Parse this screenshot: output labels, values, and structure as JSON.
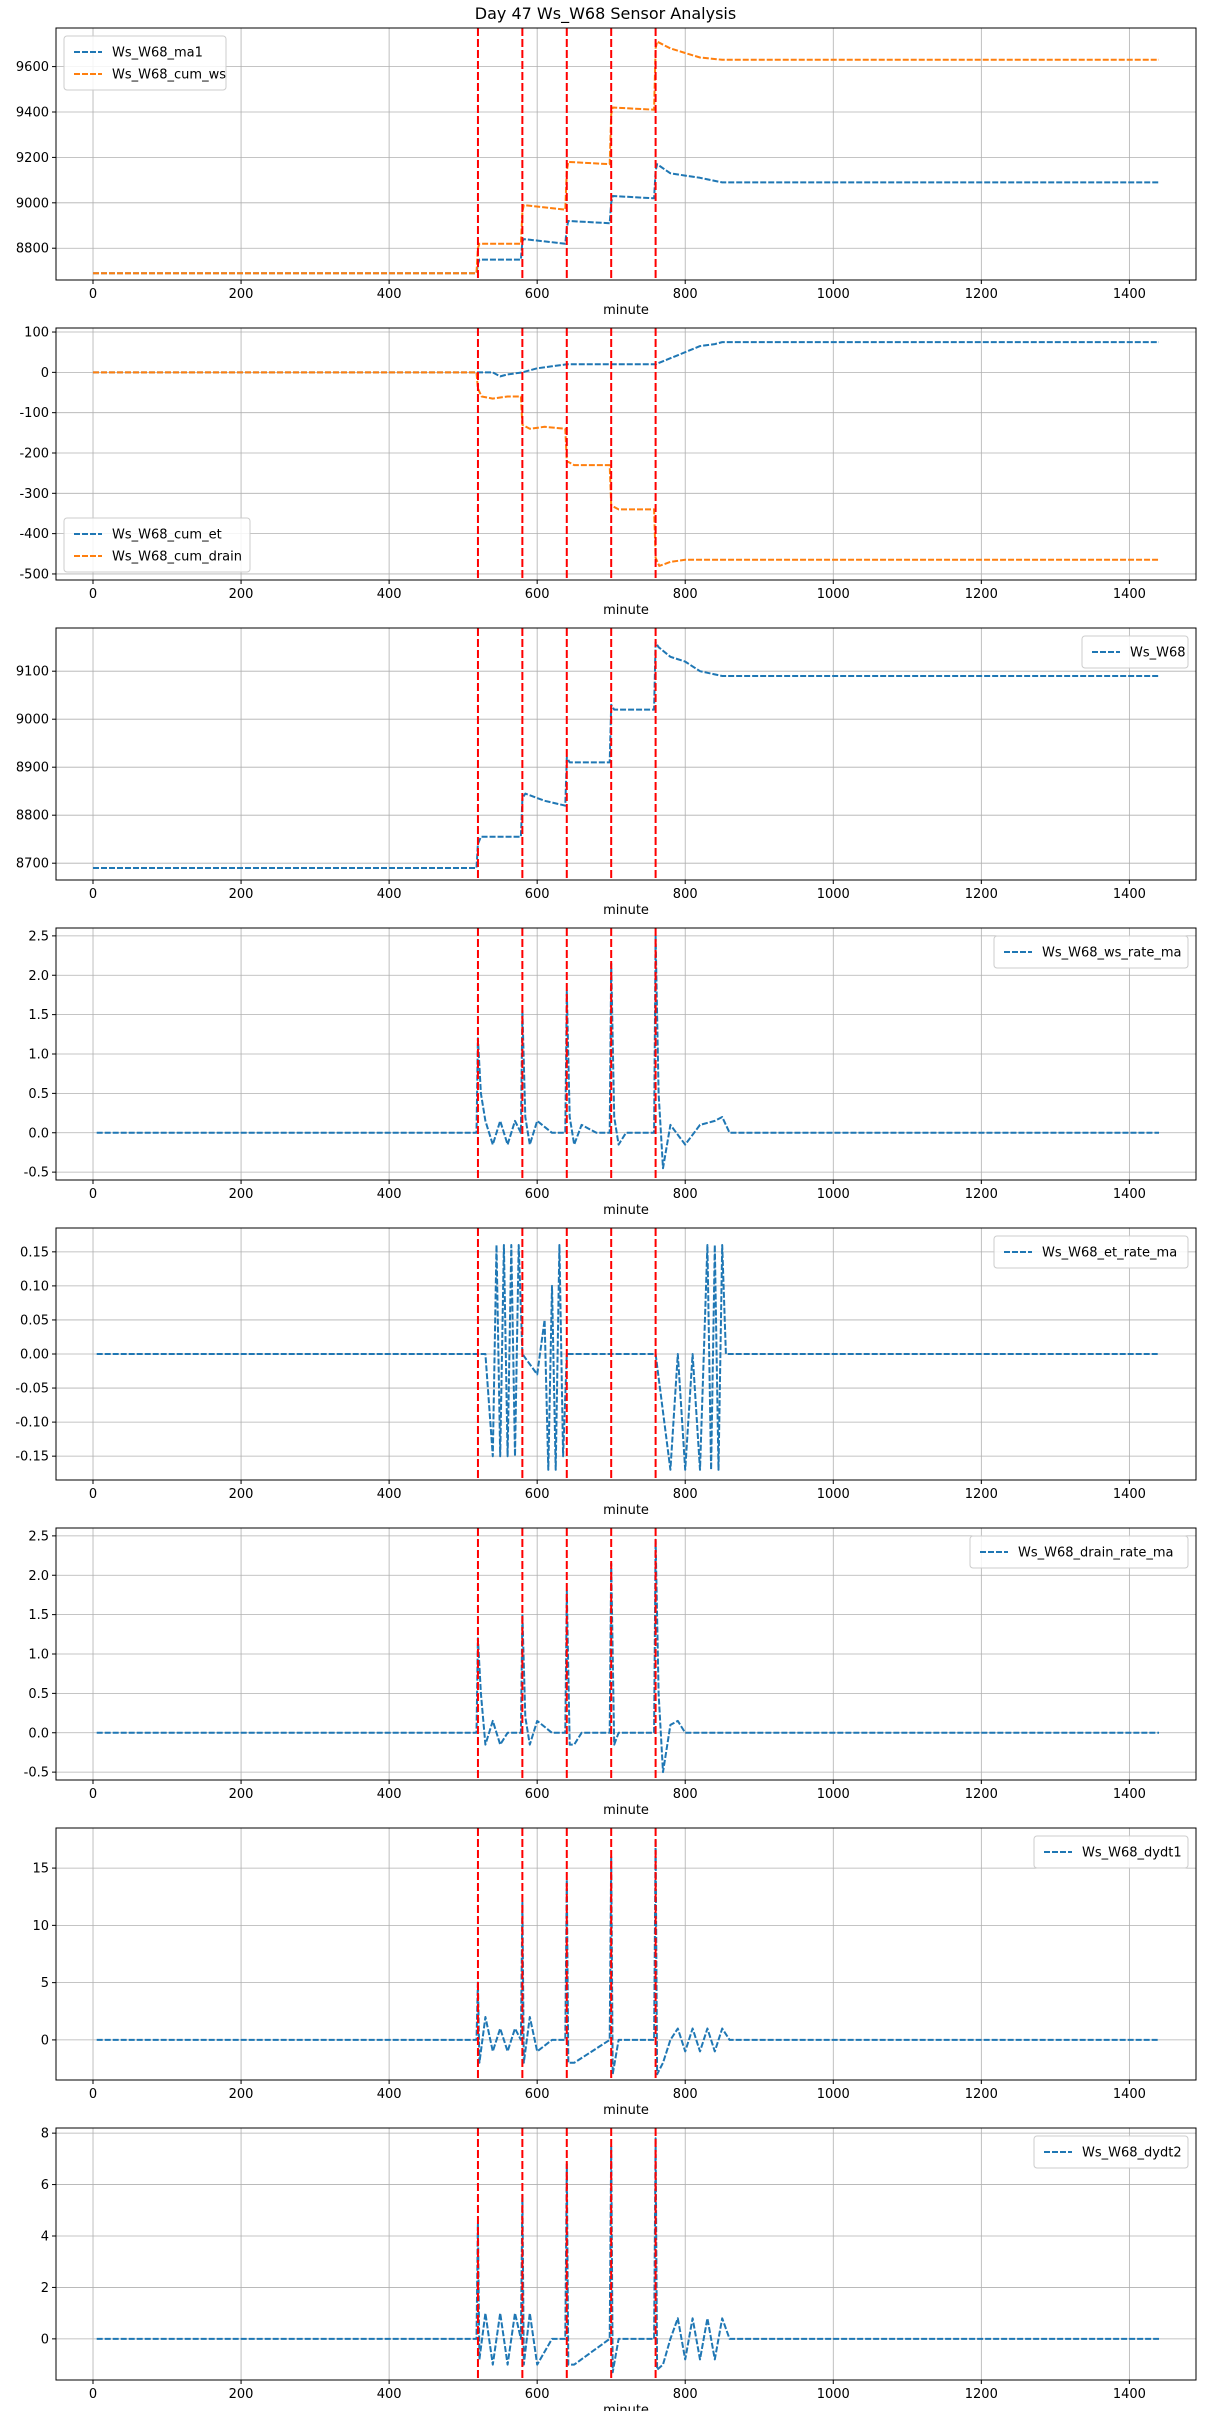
{
  "figure": {
    "title": "Day 47 Ws_W68 Sensor Analysis",
    "colors": {
      "blue": "#1f77b4",
      "orange": "#ff7f0e",
      "event": "#ff0000",
      "grid": "#b0b0b0"
    }
  },
  "chart_data": [
    {
      "type": "line",
      "xlabel": "minute",
      "xlim": [
        -50,
        1490
      ],
      "ylim": [
        8660,
        9770
      ],
      "xticks": [
        0,
        200,
        400,
        600,
        800,
        1000,
        1200,
        1400
      ],
      "yticks": [
        8800,
        9000,
        9200,
        9400,
        9600
      ],
      "grid": true,
      "legend_position": "upper left",
      "event_lines": [
        520,
        580,
        640,
        700,
        760
      ],
      "series": [
        {
          "name": "Ws_W68_ma1",
          "color": "#1f77b4",
          "x": [
            0,
            518,
            520,
            522,
            578,
            580,
            582,
            610,
            638,
            640,
            642,
            698,
            700,
            702,
            758,
            760,
            762,
            780,
            800,
            820,
            850,
            1440
          ],
          "y": [
            8690,
            8690,
            8730,
            8750,
            8750,
            8830,
            8840,
            8830,
            8820,
            8890,
            8920,
            8910,
            9000,
            9030,
            9020,
            9140,
            9170,
            9130,
            9120,
            9110,
            9090,
            9090
          ]
        },
        {
          "name": "Ws_W68_cum_ws",
          "color": "#ff7f0e",
          "x": [
            0,
            518,
            520,
            522,
            578,
            580,
            582,
            610,
            638,
            640,
            642,
            698,
            700,
            702,
            758,
            760,
            762,
            780,
            800,
            820,
            850,
            1440
          ],
          "y": [
            8690,
            8690,
            8800,
            8820,
            8820,
            8960,
            8990,
            8980,
            8970,
            9140,
            9180,
            9170,
            9390,
            9420,
            9410,
            9680,
            9710,
            9680,
            9660,
            9640,
            9630,
            9630
          ]
        }
      ]
    },
    {
      "type": "line",
      "xlabel": "minute",
      "xlim": [
        -50,
        1490
      ],
      "ylim": [
        -515,
        110
      ],
      "xticks": [
        0,
        200,
        400,
        600,
        800,
        1000,
        1200,
        1400
      ],
      "yticks": [
        -500,
        -400,
        -300,
        -200,
        -100,
        0,
        100
      ],
      "grid": true,
      "legend_position": "lower left",
      "event_lines": [
        520,
        580,
        640,
        700,
        760
      ],
      "series": [
        {
          "name": "Ws_W68_cum_et",
          "color": "#1f77b4",
          "x": [
            0,
            520,
            540,
            550,
            560,
            580,
            590,
            600,
            620,
            640,
            700,
            760,
            780,
            800,
            820,
            840,
            850,
            1440
          ],
          "y": [
            0,
            0,
            0,
            -10,
            -5,
            0,
            5,
            10,
            15,
            20,
            20,
            20,
            35,
            50,
            65,
            70,
            75,
            75
          ]
        },
        {
          "name": "Ws_W68_cum_drain",
          "color": "#ff7f0e",
          "x": [
            0,
            518,
            520,
            525,
            540,
            560,
            578,
            580,
            590,
            610,
            638,
            640,
            650,
            698,
            700,
            710,
            758,
            760,
            765,
            780,
            800,
            1440
          ],
          "y": [
            0,
            0,
            -40,
            -60,
            -65,
            -60,
            -60,
            -130,
            -140,
            -135,
            -140,
            -220,
            -230,
            -230,
            -330,
            -340,
            -340,
            -460,
            -480,
            -470,
            -465,
            -465
          ]
        }
      ]
    },
    {
      "type": "line",
      "xlabel": "minute",
      "xlim": [
        -50,
        1490
      ],
      "ylim": [
        8665,
        9190
      ],
      "xticks": [
        0,
        200,
        400,
        600,
        800,
        1000,
        1200,
        1400
      ],
      "yticks": [
        8700,
        8800,
        8900,
        9000,
        9100
      ],
      "grid": true,
      "legend_position": "upper right",
      "event_lines": [
        520,
        580,
        640,
        700,
        760
      ],
      "series": [
        {
          "name": "Ws_W68",
          "color": "#1f77b4",
          "x": [
            0,
            518,
            520,
            524,
            578,
            580,
            584,
            610,
            638,
            640,
            644,
            698,
            700,
            704,
            758,
            760,
            764,
            780,
            800,
            820,
            850,
            1440
          ],
          "y": [
            8690,
            8690,
            8740,
            8755,
            8755,
            8835,
            8845,
            8830,
            8820,
            8920,
            8910,
            8910,
            9030,
            9020,
            9020,
            9160,
            9150,
            9130,
            9120,
            9100,
            9090,
            9090
          ]
        }
      ]
    },
    {
      "type": "line",
      "xlabel": "minute",
      "xlim": [
        -50,
        1490
      ],
      "ylim": [
        -0.6,
        2.6
      ],
      "xticks": [
        0,
        200,
        400,
        600,
        800,
        1000,
        1200,
        1400
      ],
      "yticks": [
        -0.5,
        0.0,
        0.5,
        1.0,
        1.5,
        2.0,
        2.5
      ],
      "grid": true,
      "legend_position": "upper right",
      "event_lines": [
        520,
        580,
        640,
        700,
        760
      ],
      "series": [
        {
          "name": "Ws_W68_ws_rate_ma",
          "color": "#1f77b4",
          "x": [
            5,
            518,
            520,
            524,
            530,
            540,
            550,
            560,
            570,
            578,
            580,
            584,
            590,
            600,
            620,
            638,
            640,
            644,
            650,
            660,
            680,
            698,
            700,
            704,
            710,
            720,
            740,
            758,
            760,
            764,
            770,
            780,
            800,
            820,
            840,
            850,
            860,
            1440
          ],
          "y": [
            0,
            0,
            1.2,
            0.5,
            0.15,
            -0.15,
            0.15,
            -0.15,
            0.15,
            0,
            1.55,
            0.2,
            -0.15,
            0.15,
            0,
            0,
            1.8,
            0.2,
            -0.15,
            0.1,
            0,
            0,
            2.15,
            0.2,
            -0.15,
            0,
            0,
            0,
            2.5,
            0.5,
            -0.45,
            0.1,
            -0.15,
            0.1,
            0.15,
            0.2,
            0,
            0
          ]
        }
      ]
    },
    {
      "type": "line",
      "xlabel": "minute",
      "xlim": [
        -50,
        1490
      ],
      "ylim": [
        -0.185,
        0.185
      ],
      "xticks": [
        0,
        200,
        400,
        600,
        800,
        1000,
        1200,
        1400
      ],
      "yticks": [
        -0.15,
        -0.1,
        -0.05,
        0.0,
        0.05,
        0.1,
        0.15
      ],
      "grid": true,
      "legend_position": "upper right",
      "event_lines": [
        520,
        580,
        640,
        700,
        760
      ],
      "series": [
        {
          "name": "Ws_W68_et_rate_ma",
          "color": "#1f77b4",
          "x": [
            5,
            530,
            540,
            545,
            550,
            555,
            560,
            565,
            570,
            575,
            580,
            600,
            610,
            615,
            620,
            625,
            630,
            635,
            640,
            760,
            780,
            790,
            800,
            810,
            820,
            830,
            835,
            840,
            845,
            850,
            855,
            1440
          ],
          "y": [
            0,
            0,
            -0.15,
            0.16,
            -0.15,
            0.16,
            -0.15,
            0.16,
            -0.15,
            0.16,
            0,
            -0.03,
            0.05,
            -0.17,
            0.1,
            -0.17,
            0.16,
            -0.15,
            0,
            0,
            -0.17,
            0,
            -0.17,
            0,
            -0.17,
            0.16,
            -0.17,
            0.16,
            -0.17,
            0.16,
            0,
            0
          ]
        }
      ]
    },
    {
      "type": "line",
      "xlabel": "minute",
      "xlim": [
        -50,
        1490
      ],
      "ylim": [
        -0.6,
        2.6
      ],
      "xticks": [
        0,
        200,
        400,
        600,
        800,
        1000,
        1200,
        1400
      ],
      "yticks": [
        -0.5,
        0.0,
        0.5,
        1.0,
        1.5,
        2.0,
        2.5
      ],
      "grid": true,
      "legend_position": "upper right",
      "event_lines": [
        520,
        580,
        640,
        700,
        760
      ],
      "series": [
        {
          "name": "Ws_W68_drain_rate_ma",
          "color": "#1f77b4",
          "x": [
            5,
            518,
            520,
            524,
            530,
            540,
            550,
            560,
            578,
            580,
            584,
            590,
            600,
            620,
            638,
            640,
            644,
            650,
            660,
            698,
            700,
            704,
            710,
            758,
            760,
            764,
            770,
            780,
            790,
            800,
            1440
          ],
          "y": [
            0,
            0,
            1.2,
            0.5,
            -0.15,
            0.15,
            -0.15,
            0,
            0,
            1.5,
            0.2,
            -0.15,
            0.15,
            0,
            0,
            1.8,
            -0.15,
            -0.15,
            0,
            0,
            2.15,
            -0.15,
            0,
            0,
            2.45,
            0.5,
            -0.5,
            0.1,
            0.15,
            0,
            0
          ]
        }
      ]
    },
    {
      "type": "line",
      "xlabel": "minute",
      "xlim": [
        -50,
        1490
      ],
      "ylim": [
        -3.5,
        18.5
      ],
      "xticks": [
        0,
        200,
        400,
        600,
        800,
        1000,
        1200,
        1400
      ],
      "yticks": [
        0,
        5,
        10,
        15
      ],
      "grid": true,
      "legend_position": "upper right",
      "event_lines": [
        520,
        580,
        640,
        700,
        760
      ],
      "series": [
        {
          "name": "Ws_W68_dydt1",
          "color": "#1f77b4",
          "x": [
            5,
            518,
            520,
            522,
            530,
            540,
            550,
            560,
            570,
            578,
            580,
            582,
            590,
            600,
            620,
            638,
            640,
            642,
            650,
            698,
            700,
            702,
            710,
            758,
            760,
            762,
            770,
            780,
            790,
            800,
            810,
            820,
            830,
            840,
            850,
            860,
            1440
          ],
          "y": [
            0,
            0,
            5,
            -2,
            2,
            -1,
            1,
            -1,
            1,
            0,
            12,
            -2,
            2,
            -1,
            0,
            0,
            14,
            -2,
            -2,
            0,
            16,
            -3,
            0,
            0,
            17.5,
            -3,
            -2,
            0,
            1,
            -1,
            1,
            -1,
            1,
            -1,
            1,
            0,
            0
          ]
        }
      ]
    },
    {
      "type": "line",
      "xlabel": "minute",
      "xlim": [
        -50,
        1490
      ],
      "ylim": [
        -1.6,
        8.2
      ],
      "xticks": [
        0,
        200,
        400,
        600,
        800,
        1000,
        1200,
        1400
      ],
      "yticks": [
        0,
        2,
        4,
        6,
        8
      ],
      "grid": true,
      "legend_position": "upper right",
      "event_lines": [
        520,
        580,
        640,
        700,
        760
      ],
      "series": [
        {
          "name": "Ws_W68_dydt2",
          "color": "#1f77b4",
          "x": [
            5,
            518,
            520,
            522,
            530,
            540,
            550,
            560,
            570,
            578,
            580,
            582,
            590,
            600,
            620,
            638,
            640,
            642,
            650,
            698,
            700,
            702,
            710,
            758,
            760,
            762,
            770,
            780,
            790,
            800,
            810,
            820,
            830,
            840,
            850,
            860,
            1440
          ],
          "y": [
            0,
            0,
            4.5,
            -0.8,
            1,
            -1,
            1,
            -1,
            1,
            0,
            5.6,
            -1,
            1,
            -1,
            0,
            0,
            6.8,
            -1,
            -1,
            0,
            7.5,
            -1.3,
            0,
            0,
            7.8,
            -1.2,
            -1,
            0,
            0.8,
            -0.8,
            0.8,
            -0.8,
            0.8,
            -0.8,
            0.8,
            0,
            0
          ]
        }
      ]
    }
  ]
}
